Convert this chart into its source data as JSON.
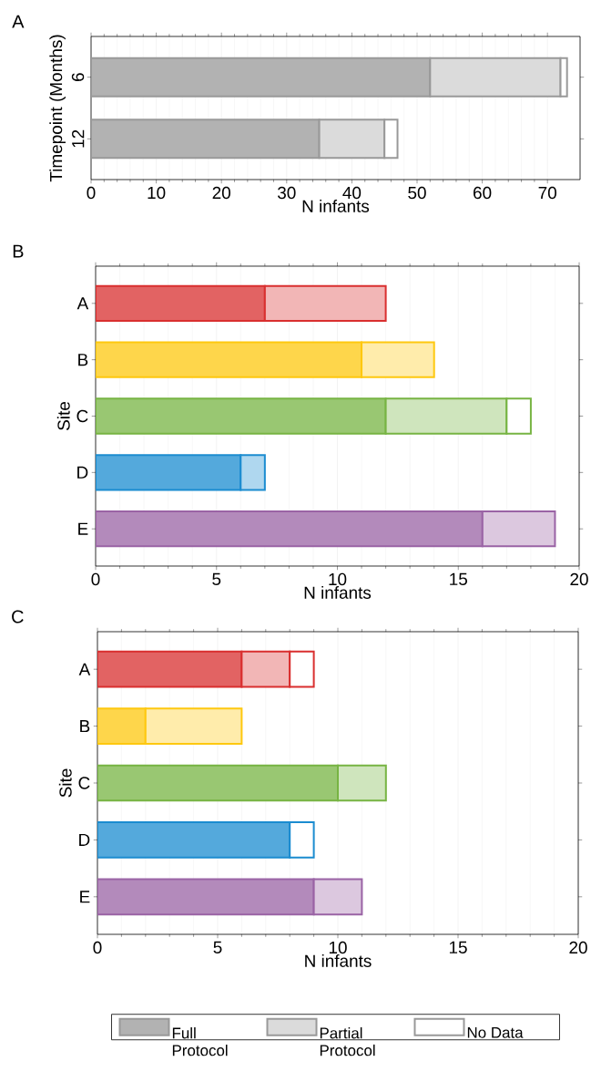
{
  "chart_data": [
    {
      "type": "bar",
      "orientation": "horizontal",
      "stacked": true,
      "title": "A",
      "xlabel": "N infants",
      "ylabel": "Timepoint (Months)",
      "categories": [
        "6",
        "12"
      ],
      "xlim": [
        0,
        75
      ],
      "xticks": [
        0,
        10,
        20,
        30,
        40,
        50,
        60,
        70
      ],
      "grid": "x",
      "legend": "bottom",
      "series": [
        {
          "name": "Full Protocol",
          "color": "#999999",
          "values": [
            52,
            35
          ]
        },
        {
          "name": "Partial Protocol",
          "color": "#999999",
          "values": [
            20,
            10
          ]
        },
        {
          "name": "No Data",
          "color": "#999999",
          "values": [
            1,
            2
          ]
        }
      ]
    },
    {
      "type": "bar",
      "orientation": "horizontal",
      "stacked": true,
      "title": "B",
      "xlabel": "N infants",
      "ylabel": "Site",
      "categories": [
        "A",
        "B",
        "C",
        "D",
        "E"
      ],
      "xlim": [
        0,
        20
      ],
      "xticks": [
        0,
        5,
        10,
        15,
        20
      ],
      "grid": "x",
      "series": [
        {
          "values": [
            7,
            11,
            12,
            6,
            16
          ],
          "colors": [
            "#d92f2f",
            "#fec80f",
            "#77b443",
            "#1b8cd0",
            "#9a63a5"
          ]
        },
        {
          "values": [
            5,
            3,
            5,
            1,
            3
          ],
          "colors": [
            "#d92f2f",
            "#fec80f",
            "#77b443",
            "#1b8cd0",
            "#9a63a5"
          ]
        },
        {
          "values": [
            null,
            null,
            1,
            null,
            null
          ],
          "colors": [
            "#d92f2f",
            "#fec80f",
            "#77b443",
            "#1b8cd0",
            "#9a63a5"
          ]
        }
      ]
    },
    {
      "type": "bar",
      "orientation": "horizontal",
      "stacked": true,
      "title": "C",
      "xlabel": "N infants",
      "ylabel": "Site",
      "categories": [
        "A",
        "B",
        "C",
        "D",
        "E"
      ],
      "xlim": [
        0,
        20
      ],
      "xticks": [
        0,
        5,
        10,
        15,
        20
      ],
      "grid": "x",
      "series": [
        {
          "values": [
            6,
            2,
            10,
            8,
            9
          ],
          "colors": [
            "#d92f2f",
            "#fec80f",
            "#77b443",
            "#1b8cd0",
            "#9a63a5"
          ]
        },
        {
          "values": [
            2,
            4,
            2,
            null,
            2
          ],
          "colors": [
            "#d92f2f",
            "#fec80f",
            "#77b443",
            "#1b8cd0",
            "#9a63a5"
          ]
        },
        {
          "values": [
            1,
            null,
            null,
            1,
            null
          ],
          "colors": [
            "#d92f2f",
            "#fec80f",
            "#77b443",
            "#1b8cd0",
            "#9a63a5"
          ]
        }
      ]
    }
  ]
}
